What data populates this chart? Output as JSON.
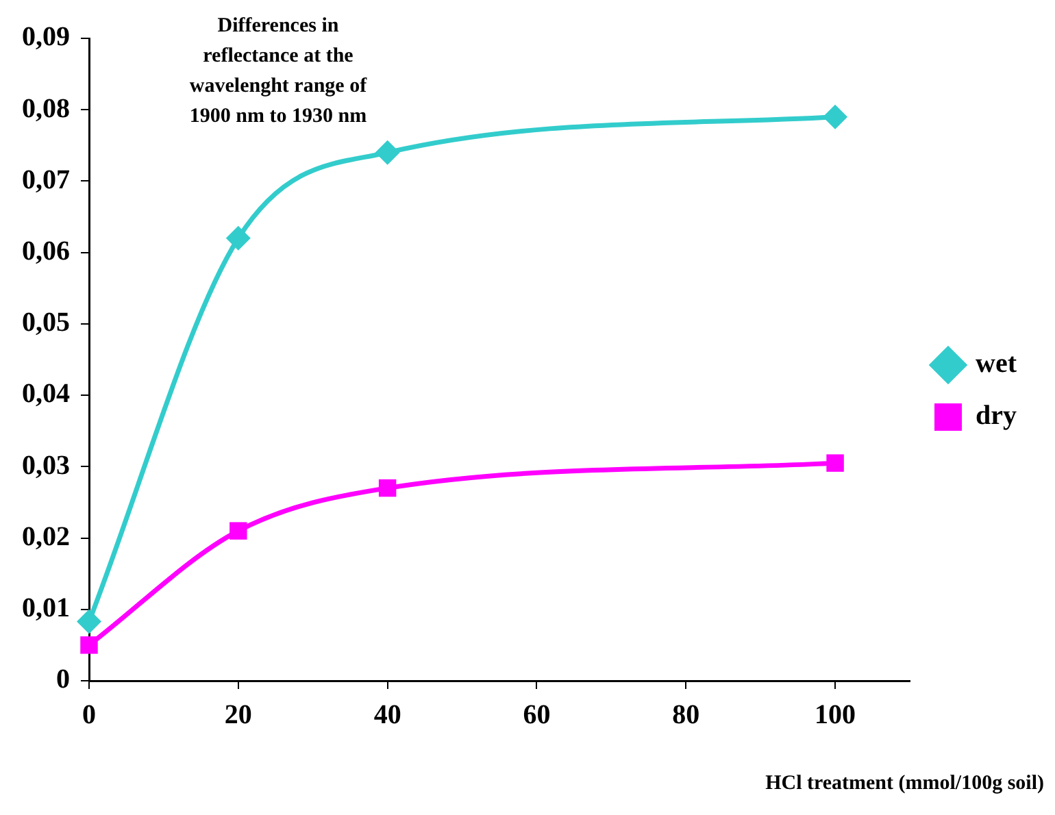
{
  "chart_data": {
    "type": "line",
    "title": "Differences in reflectance at the wavelenght range of 1900 nm to 1930 nm",
    "xlabel": "HCl treatment (mmol/100g soil)",
    "x": [
      0,
      20,
      40,
      100
    ],
    "series": [
      {
        "name": "wet",
        "color": "#33cccc",
        "values": [
          0.0083,
          0.062,
          0.074,
          0.079
        ],
        "marker": "diamond"
      },
      {
        "name": "dry",
        "color": "#ff00ff",
        "values": [
          0.005,
          0.021,
          0.027,
          0.0305
        ],
        "marker": "square"
      }
    ],
    "xlim": [
      0,
      110
    ],
    "xticks": [
      0,
      20,
      40,
      60,
      80,
      100
    ],
    "ylim": [
      0,
      0.09
    ],
    "yticks": [
      {
        "value": 0,
        "label": "0"
      },
      {
        "value": 0.01,
        "label": "0,01"
      },
      {
        "value": 0.02,
        "label": "0,02"
      },
      {
        "value": 0.03,
        "label": "0,03"
      },
      {
        "value": 0.04,
        "label": "0,04"
      },
      {
        "value": 0.05,
        "label": "0,05"
      },
      {
        "value": 0.06,
        "label": "0,06"
      },
      {
        "value": 0.07,
        "label": "0,07"
      },
      {
        "value": 0.08,
        "label": "0,08"
      },
      {
        "value": 0.09,
        "label": "0,09"
      }
    ],
    "grid": false,
    "legend": "right",
    "line_style": "solid"
  }
}
